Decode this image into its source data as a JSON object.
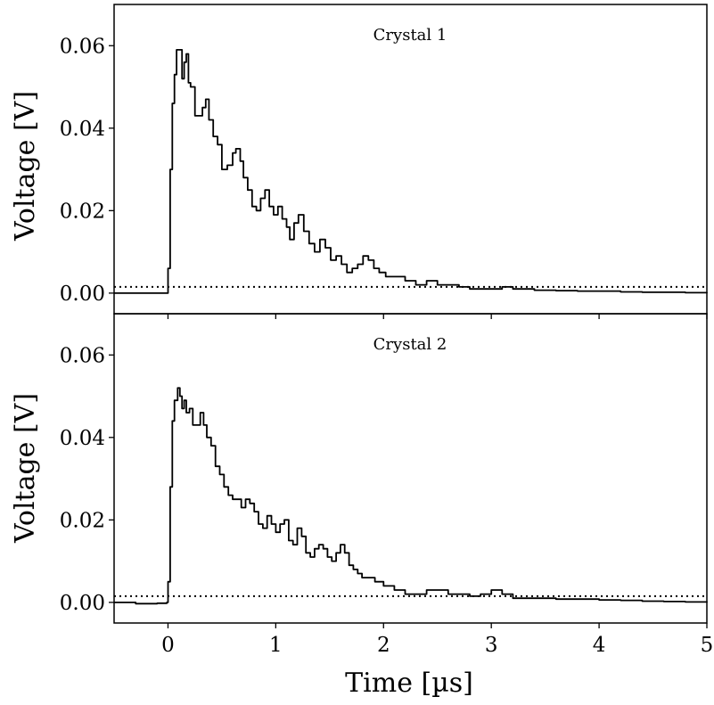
{
  "chart_data": [
    {
      "type": "line",
      "title": "Crystal 1",
      "xlabel": "Time [µs]",
      "ylabel": "Voltage [V]",
      "xlim": [
        -0.5,
        5
      ],
      "ylim": [
        -0.005,
        0.07
      ],
      "xticks": [
        0,
        1,
        2,
        3,
        4,
        5
      ],
      "yticks": [
        0.0,
        0.02,
        0.04,
        0.06
      ],
      "ytick_labels": [
        "0.00",
        "0.02",
        "0.04",
        "0.06"
      ],
      "threshold": {
        "value": 0.0015,
        "style": "dotted"
      },
      "series": [
        {
          "x": [
            -0.5,
            -0.01,
            0.0,
            0.02,
            0.04,
            0.06,
            0.08,
            0.1,
            0.13,
            0.15,
            0.17,
            0.19,
            0.21,
            0.25,
            0.29,
            0.32,
            0.35,
            0.38,
            0.42,
            0.46,
            0.5,
            0.55,
            0.6,
            0.63,
            0.67,
            0.7,
            0.74,
            0.78,
            0.82,
            0.86,
            0.9,
            0.94,
            0.98,
            1.02,
            1.06,
            1.1,
            1.13,
            1.17,
            1.21,
            1.26,
            1.31,
            1.36,
            1.41,
            1.46,
            1.51,
            1.56,
            1.61,
            1.66,
            1.71,
            1.76,
            1.81,
            1.86,
            1.91,
            1.96,
            2.02,
            2.1,
            2.2,
            2.3,
            2.4,
            2.5,
            2.6,
            2.7,
            2.8,
            2.9,
            3.0,
            3.1,
            3.2,
            3.4,
            3.6,
            3.8,
            4.0,
            4.2,
            4.4,
            4.6,
            4.8,
            5.0
          ],
          "y": [
            0.0,
            0.0,
            0.006,
            0.03,
            0.046,
            0.053,
            0.059,
            0.059,
            0.052,
            0.056,
            0.058,
            0.051,
            0.05,
            0.043,
            0.043,
            0.045,
            0.047,
            0.042,
            0.038,
            0.036,
            0.03,
            0.031,
            0.034,
            0.035,
            0.032,
            0.028,
            0.025,
            0.021,
            0.02,
            0.023,
            0.025,
            0.021,
            0.019,
            0.021,
            0.018,
            0.016,
            0.013,
            0.017,
            0.019,
            0.015,
            0.012,
            0.01,
            0.013,
            0.011,
            0.008,
            0.009,
            0.007,
            0.005,
            0.006,
            0.007,
            0.009,
            0.008,
            0.006,
            0.005,
            0.004,
            0.004,
            0.003,
            0.002,
            0.003,
            0.002,
            0.002,
            0.0015,
            0.001,
            0.001,
            0.001,
            0.0015,
            0.001,
            0.0007,
            0.0006,
            0.0005,
            0.0005,
            0.0003,
            0.0002,
            0.0002,
            0.0001,
            0.0
          ]
        }
      ]
    },
    {
      "type": "line",
      "title": "Crystal 2",
      "xlabel": "Time [µs]",
      "ylabel": "Voltage [V]",
      "xlim": [
        -0.5,
        5
      ],
      "ylim": [
        -0.005,
        0.07
      ],
      "xticks": [
        0,
        1,
        2,
        3,
        4,
        5
      ],
      "yticks": [
        0.0,
        0.02,
        0.04,
        0.06
      ],
      "ytick_labels": [
        "0.00",
        "0.02",
        "0.04",
        "0.06"
      ],
      "xtick_labels": [
        "0",
        "1",
        "2",
        "3",
        "4",
        "5"
      ],
      "threshold": {
        "value": 0.0015,
        "style": "dotted"
      },
      "series": [
        {
          "x": [
            -0.5,
            -0.3,
            -0.1,
            -0.01,
            0.0,
            0.02,
            0.04,
            0.06,
            0.09,
            0.11,
            0.13,
            0.15,
            0.17,
            0.2,
            0.23,
            0.26,
            0.3,
            0.33,
            0.36,
            0.4,
            0.44,
            0.48,
            0.52,
            0.56,
            0.6,
            0.64,
            0.68,
            0.72,
            0.76,
            0.8,
            0.84,
            0.88,
            0.92,
            0.96,
            1.0,
            1.04,
            1.08,
            1.12,
            1.16,
            1.2,
            1.24,
            1.28,
            1.32,
            1.36,
            1.4,
            1.44,
            1.48,
            1.52,
            1.56,
            1.6,
            1.64,
            1.68,
            1.72,
            1.76,
            1.8,
            1.86,
            1.92,
            2.0,
            2.1,
            2.2,
            2.3,
            2.4,
            2.5,
            2.6,
            2.7,
            2.8,
            2.9,
            3.0,
            3.1,
            3.2,
            3.4,
            3.6,
            3.8,
            4.0,
            4.2,
            4.4,
            4.6,
            4.8,
            5.0
          ],
          "y": [
            0.0,
            -0.0003,
            -0.0002,
            0.0,
            0.005,
            0.028,
            0.044,
            0.049,
            0.052,
            0.05,
            0.047,
            0.049,
            0.046,
            0.047,
            0.043,
            0.043,
            0.046,
            0.043,
            0.04,
            0.038,
            0.033,
            0.031,
            0.028,
            0.026,
            0.025,
            0.025,
            0.023,
            0.025,
            0.024,
            0.022,
            0.019,
            0.018,
            0.021,
            0.019,
            0.017,
            0.019,
            0.02,
            0.015,
            0.014,
            0.018,
            0.016,
            0.012,
            0.011,
            0.013,
            0.014,
            0.013,
            0.011,
            0.01,
            0.012,
            0.014,
            0.012,
            0.009,
            0.008,
            0.007,
            0.006,
            0.006,
            0.005,
            0.004,
            0.003,
            0.002,
            0.002,
            0.003,
            0.003,
            0.002,
            0.002,
            0.0015,
            0.002,
            0.003,
            0.002,
            0.001,
            0.001,
            0.0008,
            0.0008,
            0.0006,
            0.0005,
            0.0003,
            0.0002,
            0.0001,
            0.0
          ]
        }
      ]
    }
  ],
  "shared_xlabel": "Time [µs]"
}
